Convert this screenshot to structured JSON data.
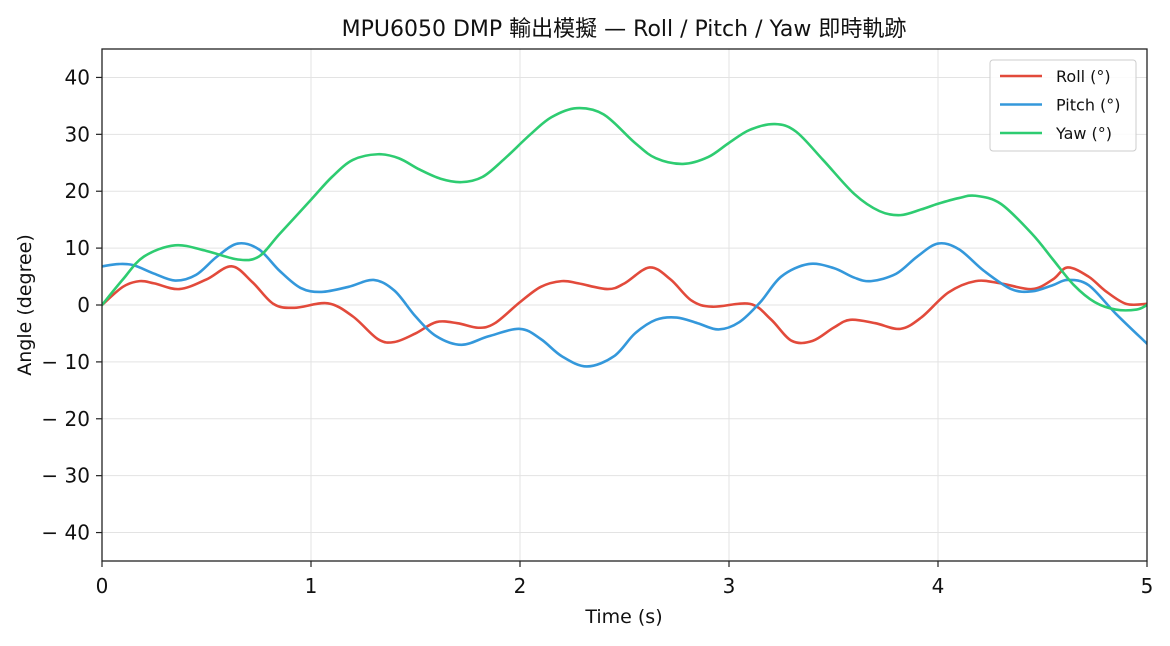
{
  "chart_data": {
    "type": "line",
    "title": "MPU6050 DMP 輸出模擬 — Roll / Pitch / Yaw 即時軌跡",
    "xlabel": "Time (s)",
    "ylabel": "Angle (degree)",
    "xlim": [
      0,
      5
    ],
    "ylim": [
      -45,
      45
    ],
    "xticks": [
      0,
      1,
      2,
      3,
      4,
      5
    ],
    "xtick_labels": [
      "0",
      "1",
      "2",
      "3",
      "4",
      "5"
    ],
    "yticks": [
      40,
      30,
      20,
      10,
      0,
      -10,
      -20,
      -30,
      -40
    ],
    "ytick_labels": [
      "40",
      "30",
      "20",
      "10",
      "0",
      "− 10",
      "− 20",
      "− 30",
      "− 40"
    ],
    "grid": true,
    "legend": "top-right",
    "series": [
      {
        "name": "Roll (°)",
        "color": "#e24a3b",
        "x": [
          0,
          0.1,
          0.18,
          0.25,
          0.37,
          0.5,
          0.62,
          0.72,
          0.82,
          0.92,
          1.08,
          1.2,
          1.32,
          1.4,
          1.5,
          1.6,
          1.7,
          1.8,
          1.88,
          2.0,
          2.1,
          2.2,
          2.28,
          2.42,
          2.5,
          2.62,
          2.72,
          2.82,
          2.92,
          3.1,
          3.2,
          3.3,
          3.4,
          3.5,
          3.58,
          3.7,
          3.82,
          3.92,
          4.05,
          4.18,
          4.3,
          4.45,
          4.55,
          4.62,
          4.72,
          4.8,
          4.9,
          5.0
        ],
        "y": [
          0,
          3.2,
          4.2,
          3.8,
          2.8,
          4.5,
          6.8,
          4.0,
          0.2,
          -0.5,
          0.3,
          -2.0,
          -6.0,
          -6.5,
          -5.0,
          -3.0,
          -3.2,
          -4.0,
          -3.2,
          0.5,
          3.2,
          4.2,
          3.8,
          2.8,
          3.8,
          6.6,
          4.5,
          0.8,
          -0.3,
          0.2,
          -2.5,
          -6.3,
          -6.3,
          -4.0,
          -2.6,
          -3.2,
          -4.2,
          -2.2,
          2.2,
          4.2,
          3.8,
          2.8,
          4.5,
          6.6,
          5.0,
          2.5,
          0.2,
          0.2
        ]
      },
      {
        "name": "Pitch (°)",
        "color": "#3498db",
        "x": [
          0,
          0.08,
          0.15,
          0.25,
          0.35,
          0.45,
          0.55,
          0.65,
          0.75,
          0.85,
          0.95,
          1.05,
          1.18,
          1.3,
          1.4,
          1.5,
          1.6,
          1.72,
          1.85,
          2.0,
          2.1,
          2.2,
          2.32,
          2.45,
          2.55,
          2.65,
          2.75,
          2.85,
          2.95,
          3.05,
          3.15,
          3.25,
          3.38,
          3.5,
          3.6,
          3.68,
          3.8,
          3.9,
          4.0,
          4.1,
          4.22,
          4.35,
          4.45,
          4.55,
          4.62,
          4.72,
          4.85,
          5.0
        ],
        "y": [
          6.8,
          7.2,
          7.0,
          5.5,
          4.3,
          5.3,
          8.5,
          10.8,
          9.8,
          6.0,
          3.0,
          2.3,
          3.2,
          4.4,
          2.5,
          -2.0,
          -5.5,
          -7.0,
          -5.5,
          -4.2,
          -6.0,
          -9.0,
          -10.8,
          -9.0,
          -5.0,
          -2.6,
          -2.2,
          -3.2,
          -4.3,
          -3.0,
          0.5,
          5.0,
          7.2,
          6.5,
          4.8,
          4.2,
          5.5,
          8.5,
          10.8,
          9.8,
          6.0,
          2.8,
          2.4,
          3.5,
          4.4,
          3.5,
          -1.5,
          -6.8
        ]
      },
      {
        "name": "Yaw (°)",
        "color": "#2ecc71",
        "x": [
          0,
          0.1,
          0.2,
          0.35,
          0.5,
          0.65,
          0.75,
          0.85,
          1.0,
          1.1,
          1.2,
          1.32,
          1.42,
          1.52,
          1.62,
          1.72,
          1.82,
          1.92,
          2.05,
          2.15,
          2.27,
          2.4,
          2.55,
          2.65,
          2.78,
          2.9,
          3.0,
          3.1,
          3.22,
          3.32,
          3.45,
          3.6,
          3.72,
          3.82,
          3.92,
          4.0,
          4.1,
          4.18,
          4.3,
          4.45,
          4.55,
          4.65,
          4.75,
          4.85,
          4.95,
          5.0
        ],
        "y": [
          0,
          4.5,
          8.5,
          10.5,
          9.5,
          8.0,
          8.5,
          12.5,
          18.5,
          22.5,
          25.5,
          26.5,
          25.8,
          23.8,
          22.2,
          21.6,
          22.5,
          25.5,
          30.0,
          33.0,
          34.6,
          33.5,
          28.5,
          25.8,
          24.8,
          26.0,
          28.5,
          30.8,
          31.8,
          30.5,
          25.5,
          19.5,
          16.5,
          15.8,
          16.8,
          17.8,
          18.8,
          19.2,
          17.8,
          12.5,
          8.0,
          3.5,
          0.5,
          -0.8,
          -0.8,
          0
        ]
      }
    ]
  }
}
